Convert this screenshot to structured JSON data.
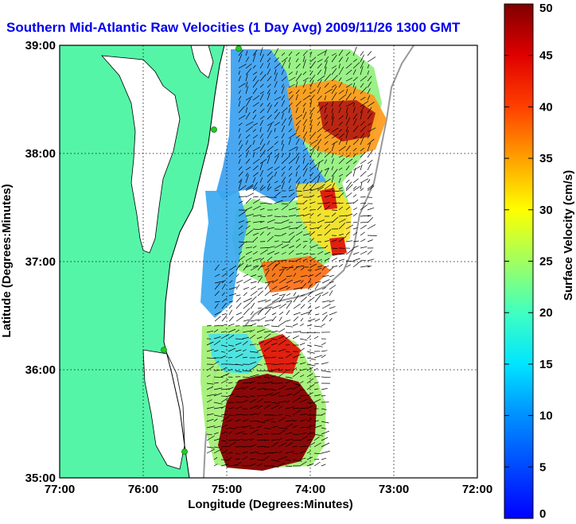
{
  "title": "Southern Mid-Atlantic Raw Velocities (1 Day Avg) 2009/11/26 1300 GMT",
  "map": {
    "xlabel": "Longitude (Degrees:Minutes)",
    "ylabel": "Latitude (Degrees:Minutes)",
    "x_ticks": [
      "77:00",
      "76:00",
      "75:00",
      "74:00",
      "73:00",
      "72:00"
    ],
    "y_ticks": [
      "39:00",
      "38:00",
      "37:00",
      "36:00",
      "35:00"
    ],
    "lon_range": [
      -77,
      -72
    ],
    "lat_range": [
      35,
      39
    ],
    "grid": "dotted",
    "colors": {
      "land": "#55f5a8",
      "water": "#ffffff",
      "station_marker": "#22cc22",
      "vectors": "#000000",
      "bathymetry_contour": "#999999"
    }
  },
  "colorbar": {
    "label": "Surface Velocity (cm/s)",
    "ticks": [
      "0",
      "5",
      "10",
      "15",
      "20",
      "25",
      "30",
      "35",
      "40",
      "45",
      "50"
    ],
    "range": [
      0,
      50
    ],
    "colormap": "jet"
  }
}
